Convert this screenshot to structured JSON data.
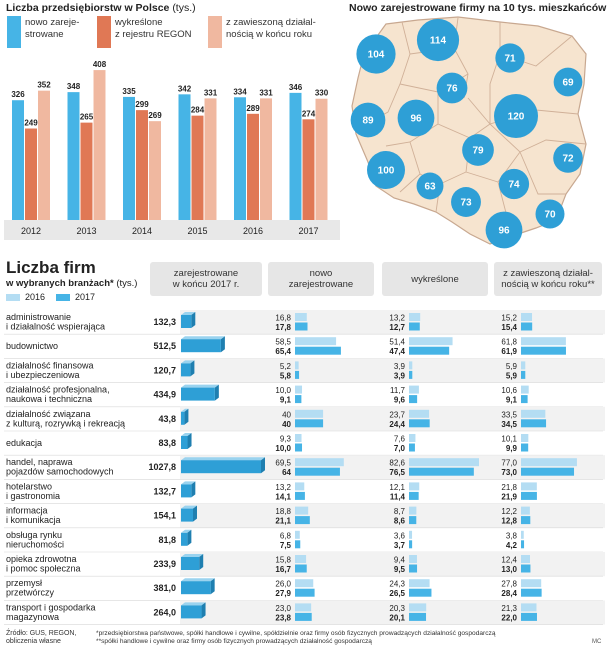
{
  "colors": {
    "registered": "#46b4e6",
    "deleted": "#e07855",
    "suspended": "#f0b8a0",
    "y2016": "#b4ddf3",
    "y2017": "#46b4e6",
    "map_land": "#f6e4cf",
    "map_border": "#c8a890",
    "circle": "#2e9fd6"
  },
  "top_chart": {
    "title": "Liczba przedsiębiorstw w Polsce",
    "unit": "(tys.)",
    "legend": {
      "registered": [
        "nowo zareje-",
        "strowane"
      ],
      "deleted": [
        "wykreślone",
        "z rejestru REGON"
      ],
      "suspended": [
        "z zawieszoną działal-",
        "nością w końcu roku"
      ]
    }
  },
  "map": {
    "title": "Nowo zarejestrowane firmy na 10 tys. mieszkańców"
  },
  "table": {
    "title": "Liczba firm",
    "subtitle": "w wybranych branżach*",
    "unit": "(tys.)",
    "legend_2016": "2016",
    "legend_2017": "2017",
    "headers": {
      "registered_end": [
        "zarejestrowane",
        "w końcu 2017 r."
      ],
      "new": [
        "nowo",
        "zarejestrowane"
      ],
      "deleted": [
        "wykreślone"
      ],
      "suspended": [
        "z zawieszoną działal-",
        "nością w końcu roku**"
      ]
    }
  },
  "footer": {
    "source": [
      "Źródło: GUS, REGON,",
      "obliczenia własne"
    ],
    "note1": "*przedsiębiorstwa państwowe, spółki handlowe i cywilne, spółdzielnie oraz firmy osób fizycznych prowadzących działalność gospodarczą",
    "note2": "**spółki handlowe i cywilne oraz firmy osób fizycznych prowadzących działalność gospodarczą",
    "credit": "MC"
  },
  "chart_data": [
    {
      "type": "bar",
      "title": "Liczba przedsiębiorstw w Polsce",
      "unit": "tys.",
      "categories": [
        "2012",
        "2013",
        "2014",
        "2015",
        "2016",
        "2017"
      ],
      "series": [
        {
          "name": "nowo zarejestrowane",
          "values": [
            326,
            348,
            335,
            342,
            334,
            346
          ]
        },
        {
          "name": "wykreślone z rejestru REGON",
          "values": [
            249,
            265,
            299,
            284,
            289,
            274
          ]
        },
        {
          "name": "z zawieszoną działalnością w końcu roku",
          "values": [
            352,
            408,
            269,
            331,
            331,
            330
          ]
        }
      ],
      "ylim": [
        0,
        430
      ],
      "grid": false
    },
    {
      "type": "map",
      "title": "Nowo zarejestrowane firmy na 10 tys. mieszkańców",
      "values": [
        104,
        114,
        71,
        69,
        76,
        89,
        96,
        120,
        79,
        72,
        100,
        63,
        74,
        73,
        70,
        96
      ]
    },
    {
      "type": "bar",
      "title": "Liczba firm w wybranych branżach*",
      "unit": "tys.",
      "rows": [
        {
          "label": [
            "administrowanie",
            "i działalność wspierająca"
          ],
          "registered": "132,3",
          "new": [
            "16,8",
            "17,8"
          ],
          "deleted": [
            "13,2",
            "12,7"
          ],
          "suspended": [
            "15,2",
            "15,4"
          ]
        },
        {
          "label": [
            "budownictwo"
          ],
          "registered": "512,5",
          "new": [
            "58,5",
            "65,4"
          ],
          "deleted": [
            "51,4",
            "47,4"
          ],
          "suspended": [
            "61,8",
            "61,9"
          ]
        },
        {
          "label": [
            "działalność finansowa",
            "i ubezpieczeniowa"
          ],
          "registered": "120,7",
          "new": [
            "5,2",
            "5,8"
          ],
          "deleted": [
            "3,9",
            "3,9"
          ],
          "suspended": [
            "5,9",
            "5,9"
          ]
        },
        {
          "label": [
            "działalność profesjonalna,",
            "naukowa i techniczna"
          ],
          "registered": "434,9",
          "new": [
            "10,0",
            "9,1"
          ],
          "deleted": [
            "11,7",
            "9,6"
          ],
          "suspended": [
            "10,6",
            "9,1"
          ]
        },
        {
          "label": [
            "działalność związana",
            "z kulturą, rozrywką i rekreacją"
          ],
          "registered": "43,8",
          "new": [
            "40",
            "40"
          ],
          "deleted": [
            "23,7",
            "24,4"
          ],
          "suspended": [
            "33,5",
            "34,5"
          ]
        },
        {
          "label": [
            "edukacja"
          ],
          "registered": "83,8",
          "new": [
            "9,3",
            "10,0"
          ],
          "deleted": [
            "7,6",
            "7,0"
          ],
          "suspended": [
            "10,1",
            "9,9"
          ]
        },
        {
          "label": [
            "handel, naprawa",
            "pojazdów samochodowych"
          ],
          "registered": "1027,8",
          "new": [
            "69,5",
            "64"
          ],
          "deleted": [
            "82,6",
            "76,5"
          ],
          "suspended": [
            "77,0",
            "73,0"
          ]
        },
        {
          "label": [
            "hotelarstwo",
            "i gastronomia"
          ],
          "registered": "132,7",
          "new": [
            "13,2",
            "14,1"
          ],
          "deleted": [
            "12,1",
            "11,4"
          ],
          "suspended": [
            "21,8",
            "21,9"
          ]
        },
        {
          "label": [
            "informacja",
            "i komunikacja"
          ],
          "registered": "154,1",
          "new": [
            "18,8",
            "21,1"
          ],
          "deleted": [
            "8,7",
            "8,6"
          ],
          "suspended": [
            "12,2",
            "12,8"
          ]
        },
        {
          "label": [
            "obsługa rynku",
            "nieruchomości"
          ],
          "registered": "81,8",
          "new": [
            "6,8",
            "7,5"
          ],
          "deleted": [
            "3,6",
            "3,7"
          ],
          "suspended": [
            "3,8",
            "4,2"
          ]
        },
        {
          "label": [
            "opieka zdrowotna",
            "i pomoc społeczna"
          ],
          "registered": "233,9",
          "new": [
            "15,8",
            "16,7"
          ],
          "deleted": [
            "9,4",
            "9,5"
          ],
          "suspended": [
            "12,4",
            "13,0"
          ]
        },
        {
          "label": [
            "przemysł",
            "przetwórczy"
          ],
          "registered": "381,0",
          "new": [
            "26,0",
            "27,9"
          ],
          "deleted": [
            "24,3",
            "26,5"
          ],
          "suspended": [
            "27,8",
            "28,4"
          ]
        },
        {
          "label": [
            "transport i gospodarka",
            "magazynowa"
          ],
          "registered": "264,0",
          "new": [
            "23,0",
            "23,8"
          ],
          "deleted": [
            "20,3",
            "20,1"
          ],
          "suspended": [
            "21,3",
            "22,0"
          ]
        }
      ]
    }
  ]
}
